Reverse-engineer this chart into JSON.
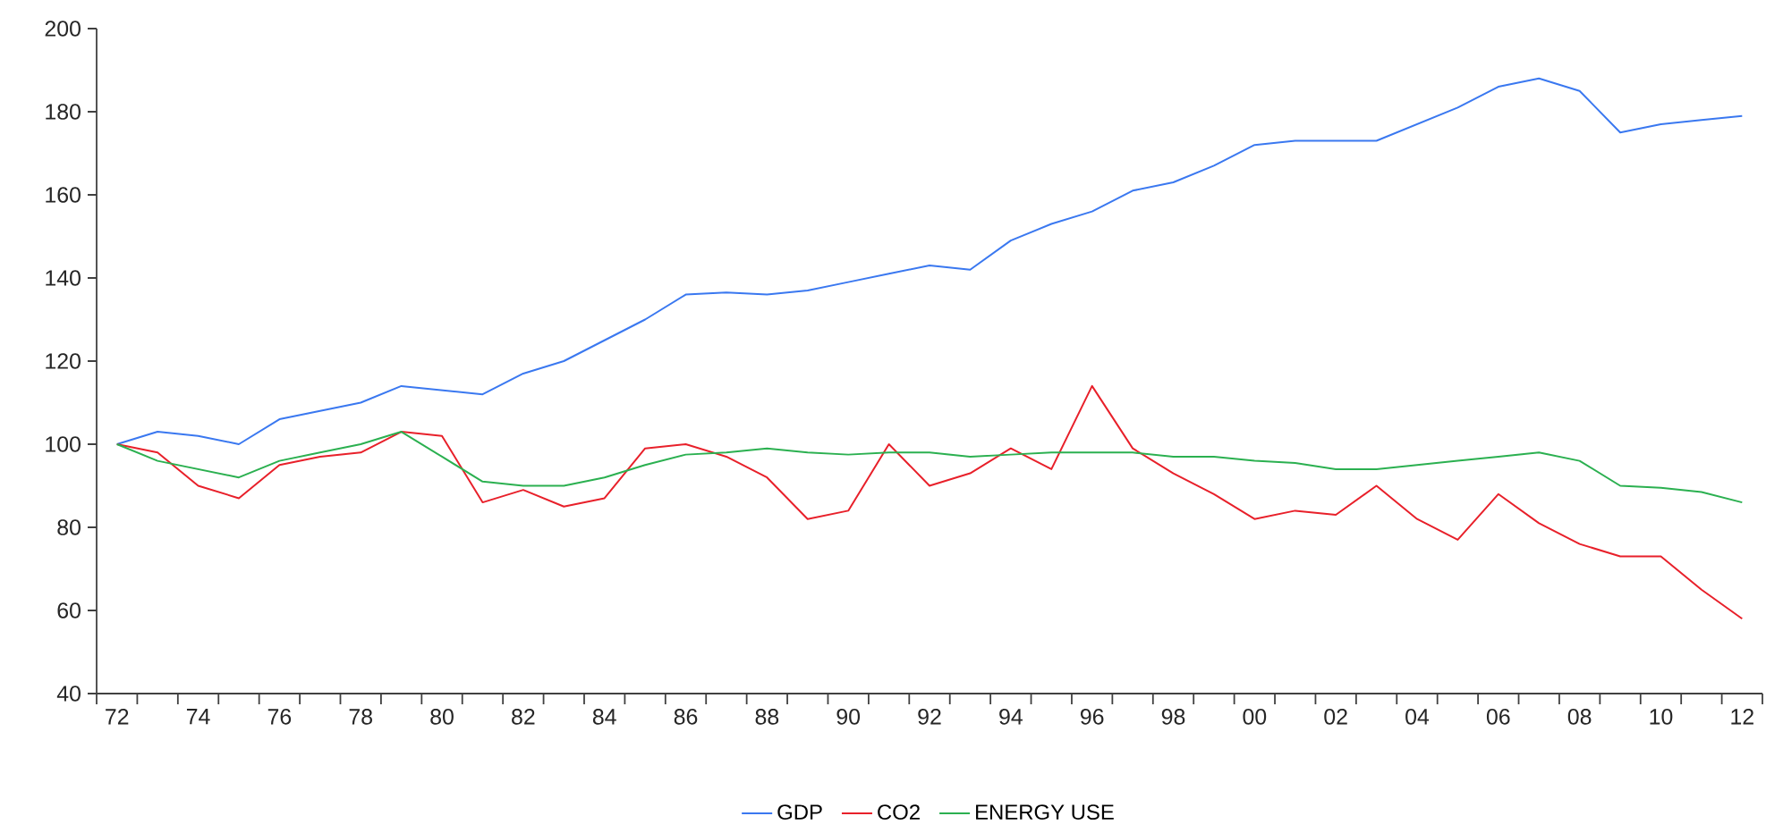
{
  "chart_data": {
    "type": "line",
    "categories": [
      "72",
      null,
      "74",
      null,
      "76",
      null,
      "78",
      null,
      "80",
      null,
      "82",
      null,
      "84",
      null,
      "86",
      null,
      "88",
      null,
      "90",
      null,
      "92",
      null,
      "94",
      null,
      "96",
      null,
      "98",
      null,
      "00",
      null,
      "02",
      null,
      "04",
      null,
      "06",
      null,
      "08",
      null,
      "10",
      null,
      "12"
    ],
    "series": [
      {
        "name": "GDP",
        "color": "#3a78f0",
        "values": [
          100,
          103,
          102,
          100,
          106,
          108,
          110,
          114,
          113,
          112,
          117,
          120,
          125,
          130,
          136,
          136.5,
          136,
          137,
          139,
          141,
          143,
          142,
          149,
          153,
          156,
          161,
          163,
          167,
          172,
          173,
          173,
          173,
          177,
          181,
          186,
          188,
          185,
          175,
          177,
          178,
          179
        ]
      },
      {
        "name": "CO2",
        "color": "#e8202a",
        "values": [
          100,
          98,
          90,
          87,
          95,
          97,
          98,
          103,
          102,
          86,
          89,
          85,
          87,
          99,
          100,
          97,
          92,
          82,
          84,
          100,
          90,
          93,
          99,
          94,
          114,
          99,
          93,
          88,
          82,
          84,
          83,
          90,
          82,
          77,
          88,
          81,
          76,
          73,
          73,
          65,
          58
        ]
      },
      {
        "name": "ENERGY USE",
        "color": "#2bb050",
        "values": [
          100,
          96,
          94,
          92,
          96,
          98,
          100,
          103,
          97,
          91,
          90,
          90,
          92,
          95,
          97.5,
          98,
          99,
          98,
          97.5,
          98,
          98,
          97,
          97.5,
          98,
          98,
          98,
          97,
          97,
          96,
          95.5,
          94,
          94,
          95,
          96,
          97,
          98,
          96,
          90,
          89.5,
          88.5,
          86
        ]
      }
    ],
    "ylim": [
      40,
      200
    ],
    "yticks": [
      40,
      60,
      80,
      100,
      120,
      140,
      160,
      180,
      200
    ],
    "legend": "bottom",
    "marker": "none"
  }
}
